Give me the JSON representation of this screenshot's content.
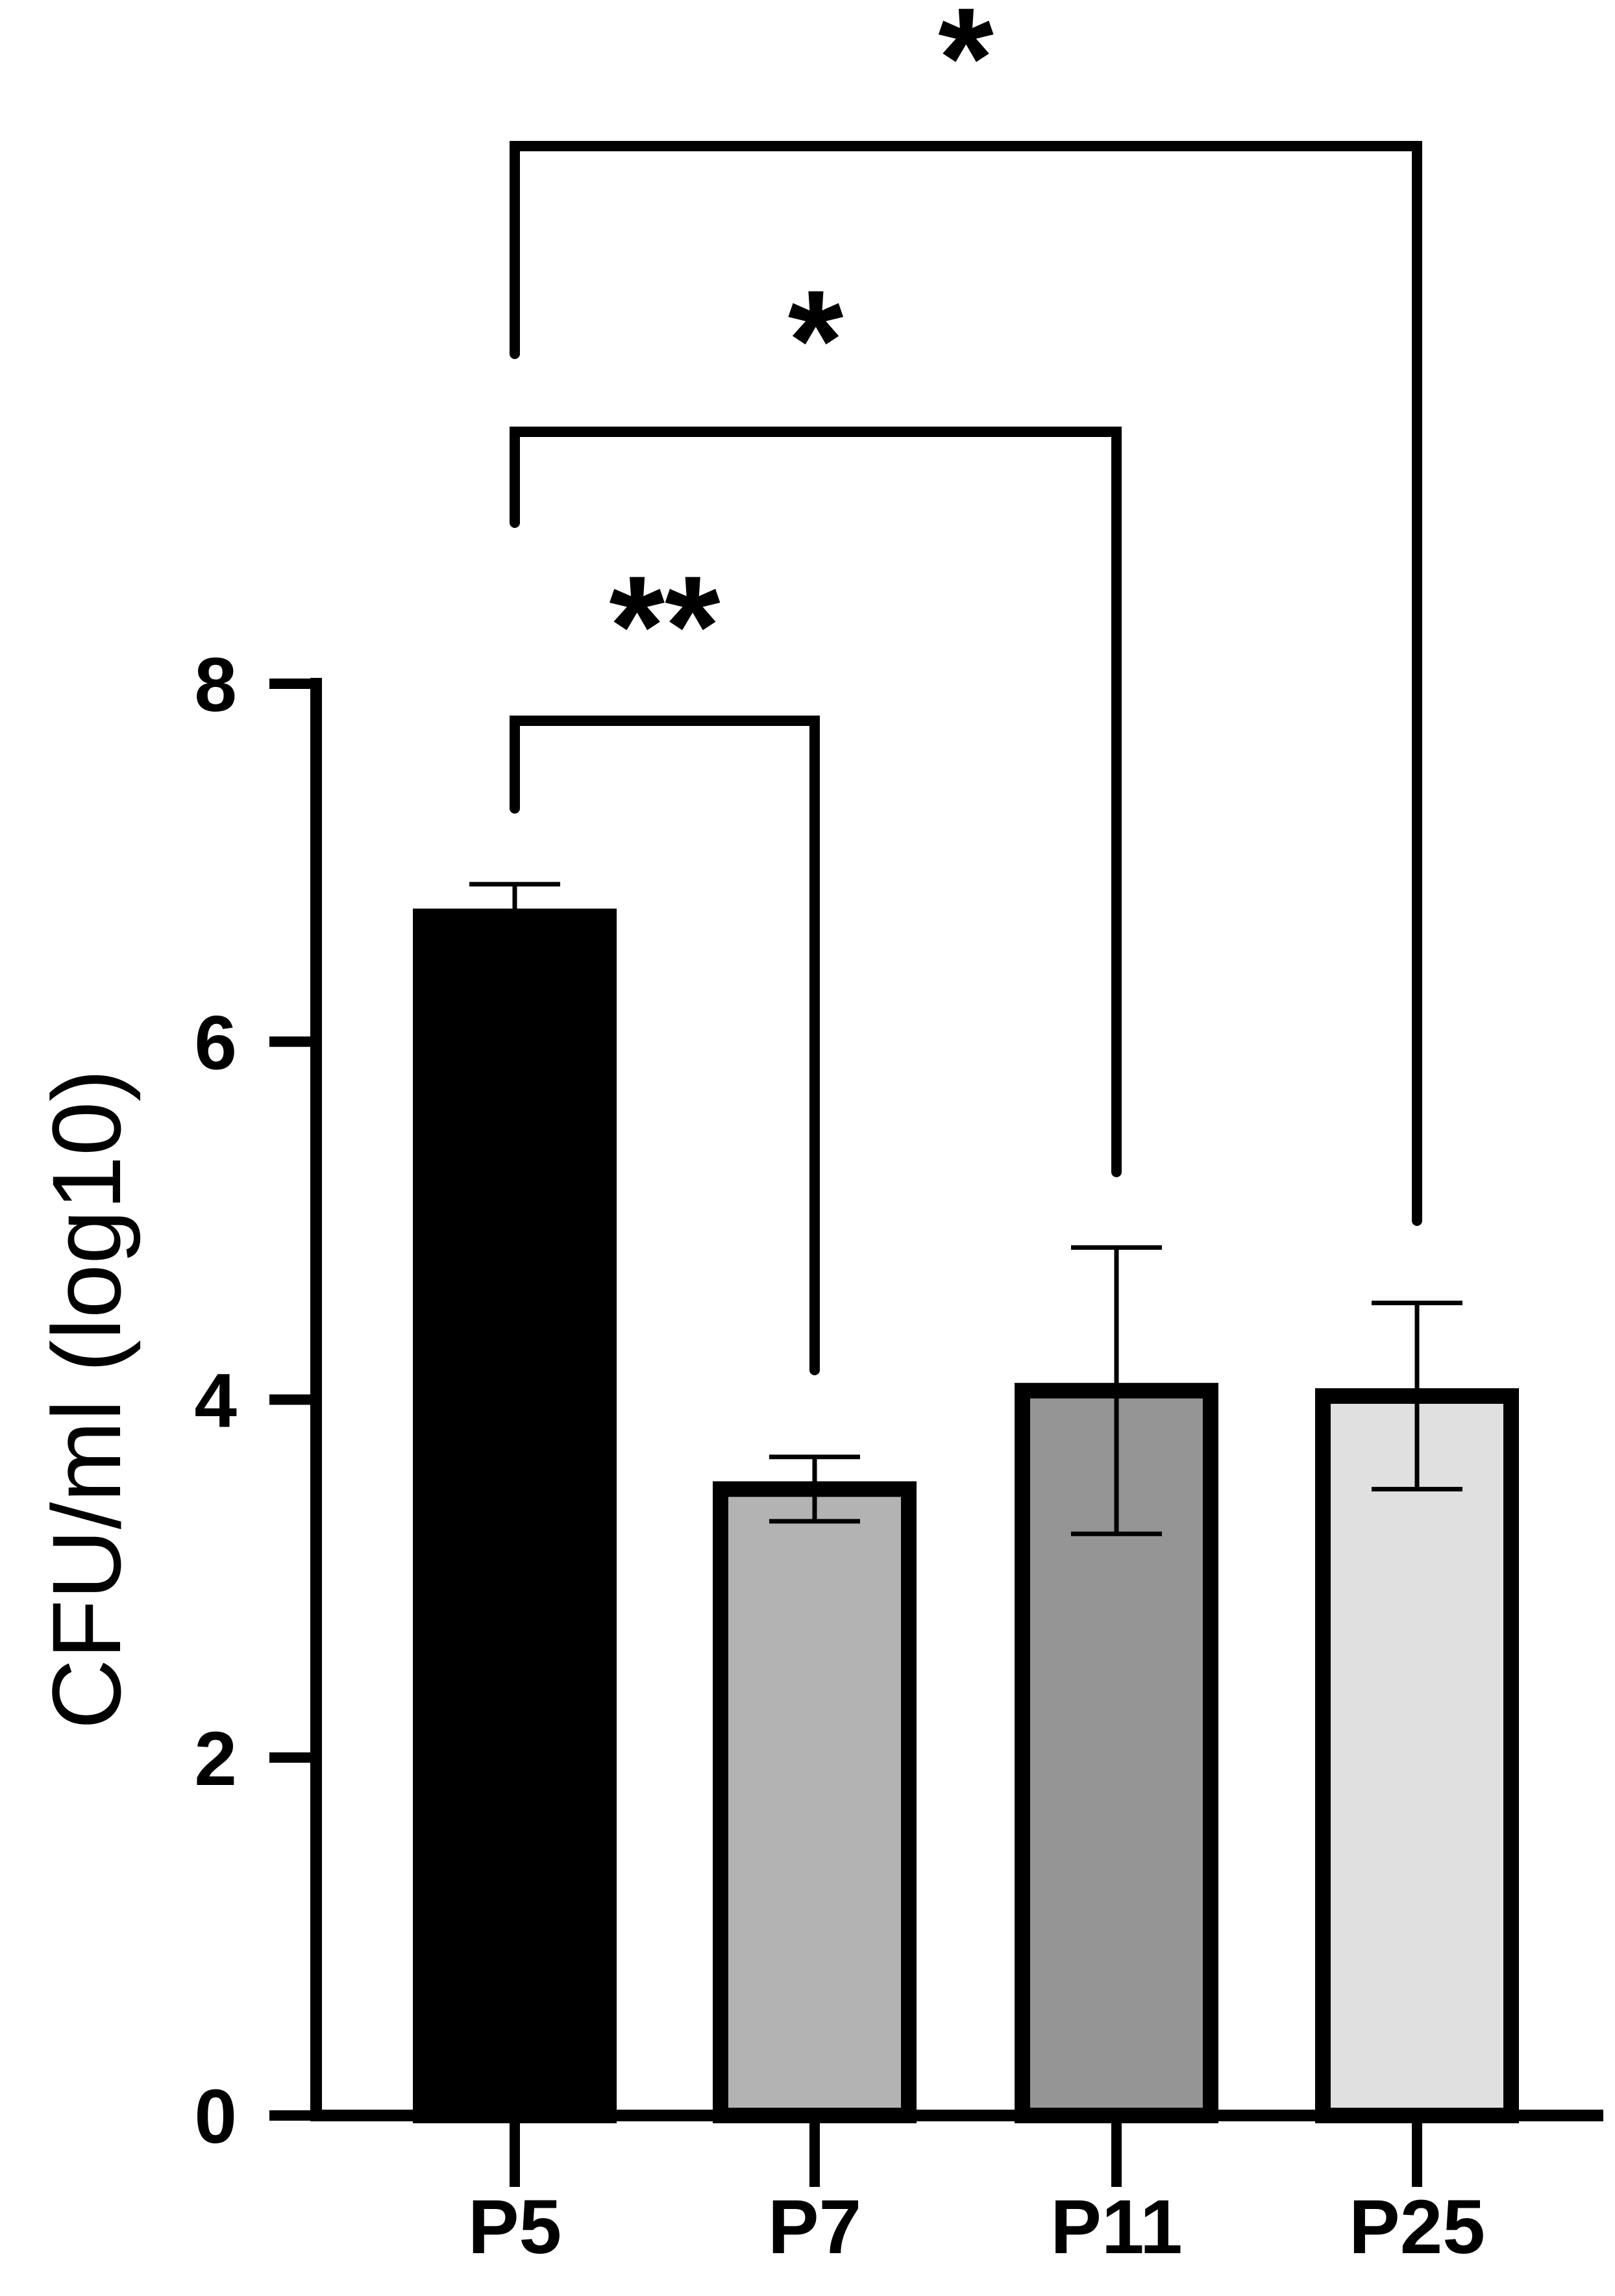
{
  "chart_data": {
    "type": "bar",
    "categories": [
      "P5",
      "P7",
      "P11",
      "P25"
    ],
    "values": [
      6.7,
      3.5,
      4.05,
      4.02
    ],
    "errors": [
      0.18,
      0.18,
      0.8,
      0.52
    ],
    "bar_fill": [
      "#000000",
      "#b3b3b3",
      "#959595",
      "#e0e0e0"
    ],
    "ylabel": "CFU/ml (log10)",
    "xlabel": "",
    "title": "",
    "ylim": [
      0,
      8
    ],
    "yticks": [
      {
        "v": 0,
        "label": "0"
      },
      {
        "v": 2,
        "label": "2"
      },
      {
        "v": 4,
        "label": "4"
      },
      {
        "v": 6,
        "label": "6"
      },
      {
        "v": 8,
        "label": "8"
      }
    ],
    "comparisons": [
      {
        "from": 0,
        "to": 1,
        "label": "**"
      },
      {
        "from": 0,
        "to": 2,
        "label": "*"
      },
      {
        "from": 0,
        "to": 3,
        "label": "*"
      }
    ],
    "grid": false,
    "legend": "none"
  }
}
